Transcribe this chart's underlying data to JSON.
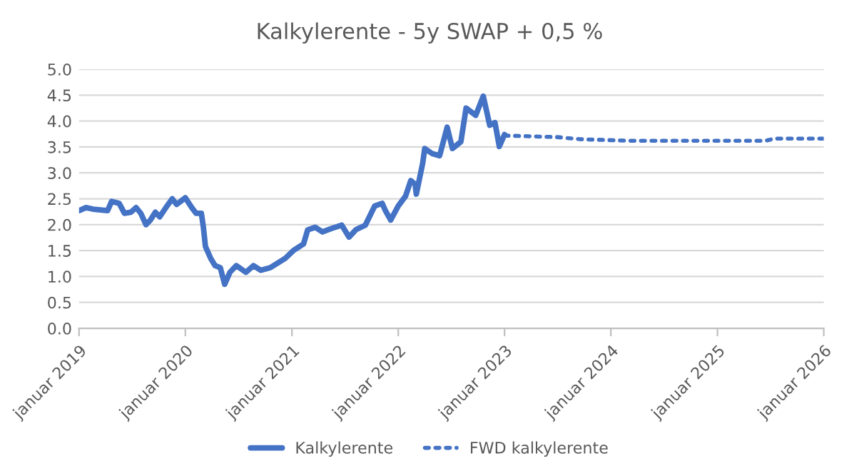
{
  "chart_data": {
    "type": "line",
    "title": "Kalkylerente - 5y SWAP + 0,5 %",
    "series": [
      {
        "name": "Kalkylerente",
        "color": "#4472c4",
        "line_style": "solid",
        "x": [
          "2019-01-01",
          "2019-01-25",
          "2019-02-18",
          "2019-04-09",
          "2019-04-23",
          "2019-05-19",
          "2019-06-06",
          "2019-06-28",
          "2019-07-16",
          "2019-08-01",
          "2019-08-19",
          "2019-09-03",
          "2019-09-20",
          "2019-10-05",
          "2019-10-30",
          "2019-11-17",
          "2019-12-02",
          "2020-01-01",
          "2020-01-23",
          "2020-02-07",
          "2020-02-25",
          "2020-03-03",
          "2020-03-10",
          "2020-03-28",
          "2020-04-12",
          "2020-04-30",
          "2020-05-15",
          "2020-06-02",
          "2020-06-24",
          "2020-07-27",
          "2020-08-22",
          "2020-09-16",
          "2020-10-19",
          "2020-12-09",
          "2021-01-08",
          "2021-02-10",
          "2021-02-24",
          "2021-03-22",
          "2021-04-16",
          "2021-05-19",
          "2021-06-21",
          "2021-07-16",
          "2021-08-08",
          "2021-09-10",
          "2021-10-12",
          "2021-11-07",
          "2021-11-18",
          "2021-12-06",
          "2022-01-01",
          "2022-01-26",
          "2022-02-13",
          "2022-02-28",
          "2022-03-04",
          "2022-03-26",
          "2022-04-02",
          "2022-04-28",
          "2022-05-23",
          "2022-06-18",
          "2022-07-06",
          "2022-08-04",
          "2022-08-22",
          "2022-09-24",
          "2022-10-20",
          "2022-11-11",
          "2022-11-29",
          "2022-12-14",
          "2023-01-01"
        ],
        "values": [
          2.27,
          2.33,
          2.3,
          2.27,
          2.45,
          2.41,
          2.22,
          2.24,
          2.33,
          2.22,
          2.0,
          2.09,
          2.24,
          2.15,
          2.36,
          2.5,
          2.39,
          2.52,
          2.33,
          2.22,
          2.22,
          1.95,
          1.58,
          1.35,
          1.21,
          1.17,
          0.85,
          1.08,
          1.21,
          1.08,
          1.21,
          1.12,
          1.17,
          1.35,
          1.51,
          1.63,
          1.9,
          1.95,
          1.86,
          1.93,
          1.99,
          1.76,
          1.9,
          1.99,
          2.36,
          2.41,
          2.27,
          2.09,
          2.36,
          2.55,
          2.85,
          2.78,
          2.59,
          3.19,
          3.47,
          3.37,
          3.33,
          3.88,
          3.47,
          3.6,
          4.25,
          4.11,
          4.48,
          3.92,
          3.97,
          3.51,
          3.74
        ]
      },
      {
        "name": "FWD kalkylerente",
        "color": "#4472c4",
        "line_style": "dotted",
        "x": [
          "2023-01-01",
          "2023-07-01",
          "2023-09-15",
          "2024-03-01",
          "2025-06-15",
          "2025-07-15",
          "2026-01-01"
        ],
        "values": [
          3.72,
          3.69,
          3.65,
          3.62,
          3.62,
          3.66,
          3.66
        ]
      }
    ],
    "xlim": [
      "2019-01-01",
      "2026-01-01"
    ],
    "xticks": [
      {
        "value": "2019-01-01",
        "label": "januar 2019"
      },
      {
        "value": "2020-01-01",
        "label": "januar 2020"
      },
      {
        "value": "2021-01-01",
        "label": "januar 2021"
      },
      {
        "value": "2022-01-01",
        "label": "januar 2022"
      },
      {
        "value": "2023-01-01",
        "label": "januar 2023"
      },
      {
        "value": "2024-01-01",
        "label": "januar 2024"
      },
      {
        "value": "2025-01-01",
        "label": "januar 2025"
      },
      {
        "value": "2026-01-01",
        "label": "januar 2026"
      }
    ],
    "ylim": [
      0,
      5
    ],
    "yticks": [
      {
        "value": 0,
        "label": "0.0"
      },
      {
        "value": 0.5,
        "label": "0.5"
      },
      {
        "value": 1,
        "label": "1.0"
      },
      {
        "value": 1.5,
        "label": "1.5"
      },
      {
        "value": 2,
        "label": "2.0"
      },
      {
        "value": 2.5,
        "label": "2.5"
      },
      {
        "value": 3,
        "label": "3.0"
      },
      {
        "value": 3.5,
        "label": "3.5"
      },
      {
        "value": 4,
        "label": "4.0"
      },
      {
        "value": 4.5,
        "label": "4.5"
      },
      {
        "value": 5,
        "label": "5.0"
      }
    ],
    "grid": "y",
    "legend": "bottom",
    "marker": "none"
  }
}
